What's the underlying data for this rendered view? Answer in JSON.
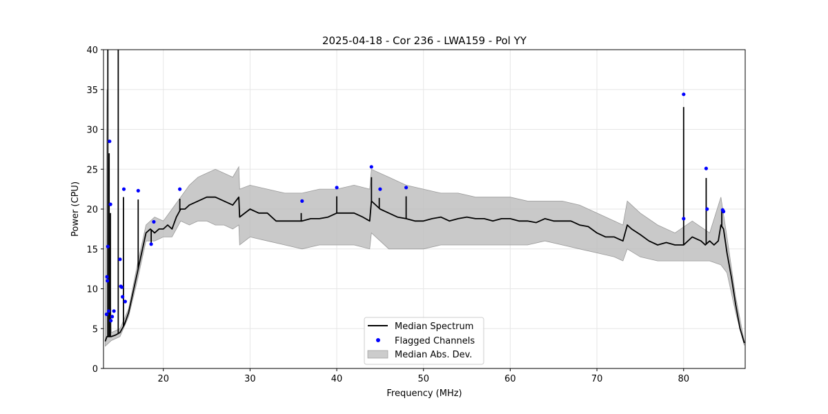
{
  "chart_data": {
    "type": "line",
    "title": "2025-04-18 - Cor 236 - LWA159 - Pol YY",
    "xlabel": "Frequency (MHz)",
    "ylabel": "Power (CPU)",
    "xlim": [
      13.1,
      87.1
    ],
    "ylim": [
      0,
      40
    ],
    "xticks": [
      20,
      30,
      40,
      50,
      60,
      70,
      80
    ],
    "yticks": [
      0,
      5,
      10,
      15,
      20,
      25,
      30,
      35,
      40
    ],
    "grid": true,
    "legend": {
      "position": "lower center",
      "entries": [
        {
          "label": "Median Spectrum",
          "style": "line",
          "color": "#000000"
        },
        {
          "label": "Flagged Channels",
          "style": "marker",
          "color": "#0000ff"
        },
        {
          "label": "Median Abs. Dev.",
          "style": "patch",
          "color": "#bbbbbb"
        }
      ]
    },
    "median_spectrum": {
      "name": "Median Spectrum",
      "color": "#000000",
      "points": [
        [
          13.3,
          3.4
        ],
        [
          13.5,
          4.0
        ],
        [
          13.7,
          4.0
        ],
        [
          14.0,
          4.0
        ],
        [
          14.5,
          4.2
        ],
        [
          15.0,
          4.5
        ],
        [
          15.5,
          5.5
        ],
        [
          16.0,
          7.0
        ],
        [
          16.5,
          9.5
        ],
        [
          17.0,
          12.0
        ],
        [
          17.5,
          14.5
        ],
        [
          18.0,
          17.0
        ],
        [
          18.5,
          17.5
        ],
        [
          19.0,
          17.0
        ],
        [
          19.5,
          17.5
        ],
        [
          20.0,
          17.5
        ],
        [
          20.5,
          18.0
        ],
        [
          21.0,
          17.5
        ],
        [
          21.5,
          19.0
        ],
        [
          22.0,
          20.0
        ],
        [
          22.5,
          20.0
        ],
        [
          23.0,
          20.5
        ],
        [
          24.0,
          21.0
        ],
        [
          25.0,
          21.5
        ],
        [
          26.0,
          21.5
        ],
        [
          27.0,
          21.0
        ],
        [
          28.0,
          20.5
        ],
        [
          28.7,
          21.5
        ],
        [
          28.8,
          19.0
        ],
        [
          30.0,
          20.0
        ],
        [
          31.0,
          19.5
        ],
        [
          32.0,
          19.5
        ],
        [
          33.0,
          18.5
        ],
        [
          34.0,
          18.5
        ],
        [
          35.0,
          18.5
        ],
        [
          36.0,
          18.5
        ],
        [
          37.0,
          18.8
        ],
        [
          38.0,
          18.8
        ],
        [
          39.0,
          19.0
        ],
        [
          40.0,
          19.5
        ],
        [
          41.0,
          19.5
        ],
        [
          42.0,
          19.5
        ],
        [
          43.0,
          19.0
        ],
        [
          43.8,
          18.5
        ],
        [
          44.0,
          21.0
        ],
        [
          45.0,
          20.0
        ],
        [
          46.0,
          19.5
        ],
        [
          47.0,
          19.0
        ],
        [
          48.0,
          18.8
        ],
        [
          49.0,
          18.5
        ],
        [
          50.0,
          18.5
        ],
        [
          51.0,
          18.8
        ],
        [
          52.0,
          19.0
        ],
        [
          53.0,
          18.5
        ],
        [
          54.0,
          18.8
        ],
        [
          55.0,
          19.0
        ],
        [
          56.0,
          18.8
        ],
        [
          57.0,
          18.8
        ],
        [
          58.0,
          18.5
        ],
        [
          59.0,
          18.8
        ],
        [
          60.0,
          18.8
        ],
        [
          61.0,
          18.5
        ],
        [
          62.0,
          18.5
        ],
        [
          63.0,
          18.3
        ],
        [
          64.0,
          18.8
        ],
        [
          65.0,
          18.5
        ],
        [
          66.0,
          18.5
        ],
        [
          67.0,
          18.5
        ],
        [
          68.0,
          18.0
        ],
        [
          69.0,
          17.8
        ],
        [
          70.0,
          17.0
        ],
        [
          71.0,
          16.5
        ],
        [
          72.0,
          16.5
        ],
        [
          73.0,
          16.0
        ],
        [
          73.5,
          18.0
        ],
        [
          74.0,
          17.5
        ],
        [
          75.0,
          16.8
        ],
        [
          76.0,
          16.0
        ],
        [
          77.0,
          15.5
        ],
        [
          78.0,
          15.8
        ],
        [
          79.0,
          15.5
        ],
        [
          80.0,
          15.5
        ],
        [
          81.0,
          16.5
        ],
        [
          82.0,
          16.0
        ],
        [
          82.5,
          15.5
        ],
        [
          83.0,
          16.0
        ],
        [
          83.5,
          15.5
        ],
        [
          84.0,
          16.0
        ],
        [
          84.3,
          18.0
        ],
        [
          84.6,
          17.5
        ],
        [
          85.0,
          14.5
        ],
        [
          85.5,
          11.5
        ],
        [
          86.0,
          8.0
        ],
        [
          86.5,
          5.0
        ],
        [
          87.0,
          3.2
        ]
      ],
      "spikes": [
        [
          13.6,
          40
        ],
        [
          13.75,
          27
        ],
        [
          13.9,
          19.5
        ],
        [
          14.8,
          40
        ],
        [
          15.4,
          21.5
        ],
        [
          17.1,
          21.2
        ],
        [
          18.6,
          15.5
        ],
        [
          21.9,
          21.3
        ],
        [
          35.9,
          19.5
        ],
        [
          40.0,
          21.6
        ],
        [
          44.0,
          24.0
        ],
        [
          44.9,
          21.4
        ],
        [
          48.0,
          21.6
        ],
        [
          80.0,
          32.8
        ],
        [
          82.6,
          23.9
        ],
        [
          84.4,
          19.8
        ]
      ]
    },
    "median_abs_dev": {
      "name": "Median Abs. Dev.",
      "color": "#bbbbbb",
      "upper": [
        [
          13.3,
          4.0
        ],
        [
          13.5,
          35.0
        ],
        [
          14.0,
          4.5
        ],
        [
          15.0,
          5.0
        ],
        [
          16.0,
          7.5
        ],
        [
          17.0,
          13.0
        ],
        [
          18.0,
          18.0
        ],
        [
          19.0,
          19.0
        ],
        [
          20.0,
          18.5
        ],
        [
          21.0,
          20.0
        ],
        [
          22.0,
          21.5
        ],
        [
          23.0,
          23.0
        ],
        [
          24.0,
          24.0
        ],
        [
          25.0,
          24.5
        ],
        [
          26.0,
          25.0
        ],
        [
          27.0,
          24.5
        ],
        [
          28.0,
          24.0
        ],
        [
          28.7,
          25.3
        ],
        [
          28.8,
          22.5
        ],
        [
          30.0,
          23.0
        ],
        [
          32.0,
          22.5
        ],
        [
          34.0,
          22.0
        ],
        [
          36.0,
          22.0
        ],
        [
          38.0,
          22.5
        ],
        [
          40.0,
          22.5
        ],
        [
          42.0,
          23.0
        ],
        [
          43.8,
          22.5
        ],
        [
          44.0,
          25.0
        ],
        [
          46.0,
          24.0
        ],
        [
          48.0,
          23.0
        ],
        [
          50.0,
          22.5
        ],
        [
          52.0,
          22.0
        ],
        [
          54.0,
          22.0
        ],
        [
          56.0,
          21.5
        ],
        [
          58.0,
          21.5
        ],
        [
          60.0,
          21.5
        ],
        [
          62.0,
          21.0
        ],
        [
          64.0,
          21.0
        ],
        [
          66.0,
          21.0
        ],
        [
          68.0,
          20.5
        ],
        [
          70.0,
          19.5
        ],
        [
          72.0,
          18.5
        ],
        [
          73.0,
          18.0
        ],
        [
          73.5,
          21.0
        ],
        [
          75.0,
          19.5
        ],
        [
          77.0,
          18.0
        ],
        [
          79.0,
          17.0
        ],
        [
          81.0,
          18.5
        ],
        [
          83.0,
          17.0
        ],
        [
          84.3,
          21.5
        ],
        [
          85.0,
          16.5
        ],
        [
          86.0,
          9.0
        ],
        [
          87.0,
          3.4
        ]
      ],
      "lower": [
        [
          13.3,
          2.8
        ],
        [
          14.0,
          3.5
        ],
        [
          15.0,
          4.0
        ],
        [
          16.0,
          6.5
        ],
        [
          17.0,
          11.0
        ],
        [
          18.0,
          16.0
        ],
        [
          19.0,
          16.0
        ],
        [
          20.0,
          16.5
        ],
        [
          21.0,
          16.5
        ],
        [
          22.0,
          18.5
        ],
        [
          23.0,
          18.0
        ],
        [
          24.0,
          18.5
        ],
        [
          25.0,
          18.5
        ],
        [
          26.0,
          18.0
        ],
        [
          27.0,
          18.0
        ],
        [
          28.0,
          17.5
        ],
        [
          28.7,
          18.0
        ],
        [
          28.8,
          15.5
        ],
        [
          30.0,
          16.5
        ],
        [
          32.0,
          16.0
        ],
        [
          34.0,
          15.5
        ],
        [
          36.0,
          15.0
        ],
        [
          38.0,
          15.5
        ],
        [
          40.0,
          15.5
        ],
        [
          42.0,
          15.5
        ],
        [
          43.8,
          15.0
        ],
        [
          44.0,
          17.0
        ],
        [
          46.0,
          15.0
        ],
        [
          48.0,
          15.0
        ],
        [
          50.0,
          15.0
        ],
        [
          52.0,
          15.5
        ],
        [
          54.0,
          15.5
        ],
        [
          56.0,
          15.5
        ],
        [
          58.0,
          15.5
        ],
        [
          60.0,
          15.5
        ],
        [
          62.0,
          15.5
        ],
        [
          64.0,
          16.0
        ],
        [
          66.0,
          15.5
        ],
        [
          68.0,
          15.0
        ],
        [
          70.0,
          14.5
        ],
        [
          72.0,
          14.0
        ],
        [
          73.0,
          13.5
        ],
        [
          73.5,
          15.0
        ],
        [
          75.0,
          14.0
        ],
        [
          77.0,
          13.5
        ],
        [
          79.0,
          13.5
        ],
        [
          81.0,
          13.5
        ],
        [
          83.0,
          13.5
        ],
        [
          84.3,
          13.0
        ],
        [
          85.0,
          12.0
        ],
        [
          86.0,
          7.0
        ],
        [
          87.0,
          2.9
        ]
      ]
    },
    "flagged_channels": {
      "name": "Flagged Channels",
      "color": "#0000ff",
      "points": [
        [
          13.45,
          6.8
        ],
        [
          13.5,
          11.5
        ],
        [
          13.55,
          11.0
        ],
        [
          13.6,
          15.3
        ],
        [
          13.7,
          7.2
        ],
        [
          13.8,
          28.5
        ],
        [
          13.9,
          20.6
        ],
        [
          13.95,
          6.0
        ],
        [
          14.1,
          6.5
        ],
        [
          14.3,
          7.2
        ],
        [
          15.0,
          13.7
        ],
        [
          15.1,
          10.3
        ],
        [
          15.2,
          10.2
        ],
        [
          15.3,
          9.0
        ],
        [
          15.45,
          22.5
        ],
        [
          15.6,
          8.4
        ],
        [
          17.1,
          22.3
        ],
        [
          18.6,
          15.6
        ],
        [
          18.9,
          18.4
        ],
        [
          21.9,
          22.5
        ],
        [
          36.0,
          21.0
        ],
        [
          40.0,
          22.7
        ],
        [
          44.0,
          25.3
        ],
        [
          45.0,
          22.5
        ],
        [
          48.0,
          22.7
        ],
        [
          80.0,
          34.4
        ],
        [
          80.0,
          18.8
        ],
        [
          82.6,
          25.1
        ],
        [
          82.7,
          20.0
        ],
        [
          84.5,
          19.9
        ],
        [
          84.6,
          19.7
        ]
      ]
    }
  }
}
